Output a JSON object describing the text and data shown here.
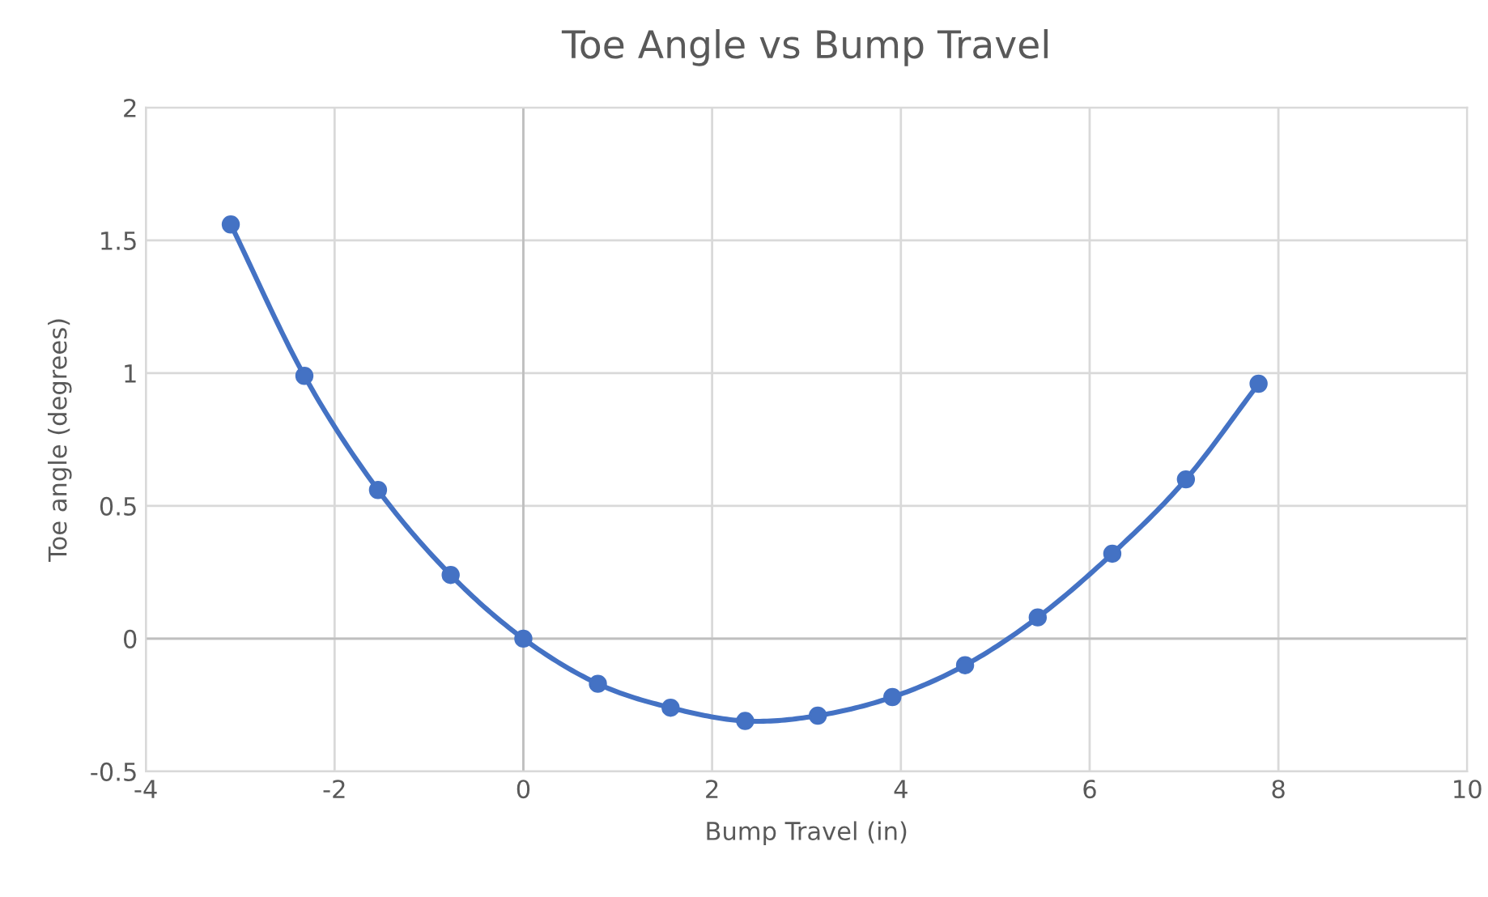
{
  "chart_data": {
    "type": "line",
    "title": "Toe Angle vs Bump Travel",
    "xlabel": "Bump Travel (in)",
    "ylabel": "Toe angle (degrees)",
    "series": [
      {
        "color": "#4472c4",
        "x": [
          -3.1,
          -2.32,
          -1.54,
          -0.77,
          0,
          0.79,
          1.56,
          2.35,
          3.12,
          3.91,
          4.68,
          5.45,
          6.24,
          7.02,
          7.79
        ],
        "values": [
          1.56,
          0.99,
          0.56,
          0.24,
          0,
          -0.17,
          -0.26,
          -0.31,
          -0.29,
          -0.22,
          -0.1,
          0.08,
          0.32,
          0.6,
          0.96
        ]
      }
    ],
    "xlim": [
      -4,
      10
    ],
    "ylim": [
      -0.5,
      2
    ],
    "xticks": [
      -4,
      -2,
      0,
      2,
      4,
      6,
      8,
      10
    ],
    "yticks": [
      -0.5,
      0,
      0.5,
      1,
      1.5,
      2
    ],
    "grid": true,
    "marker": "circle",
    "line_style": "solid"
  }
}
